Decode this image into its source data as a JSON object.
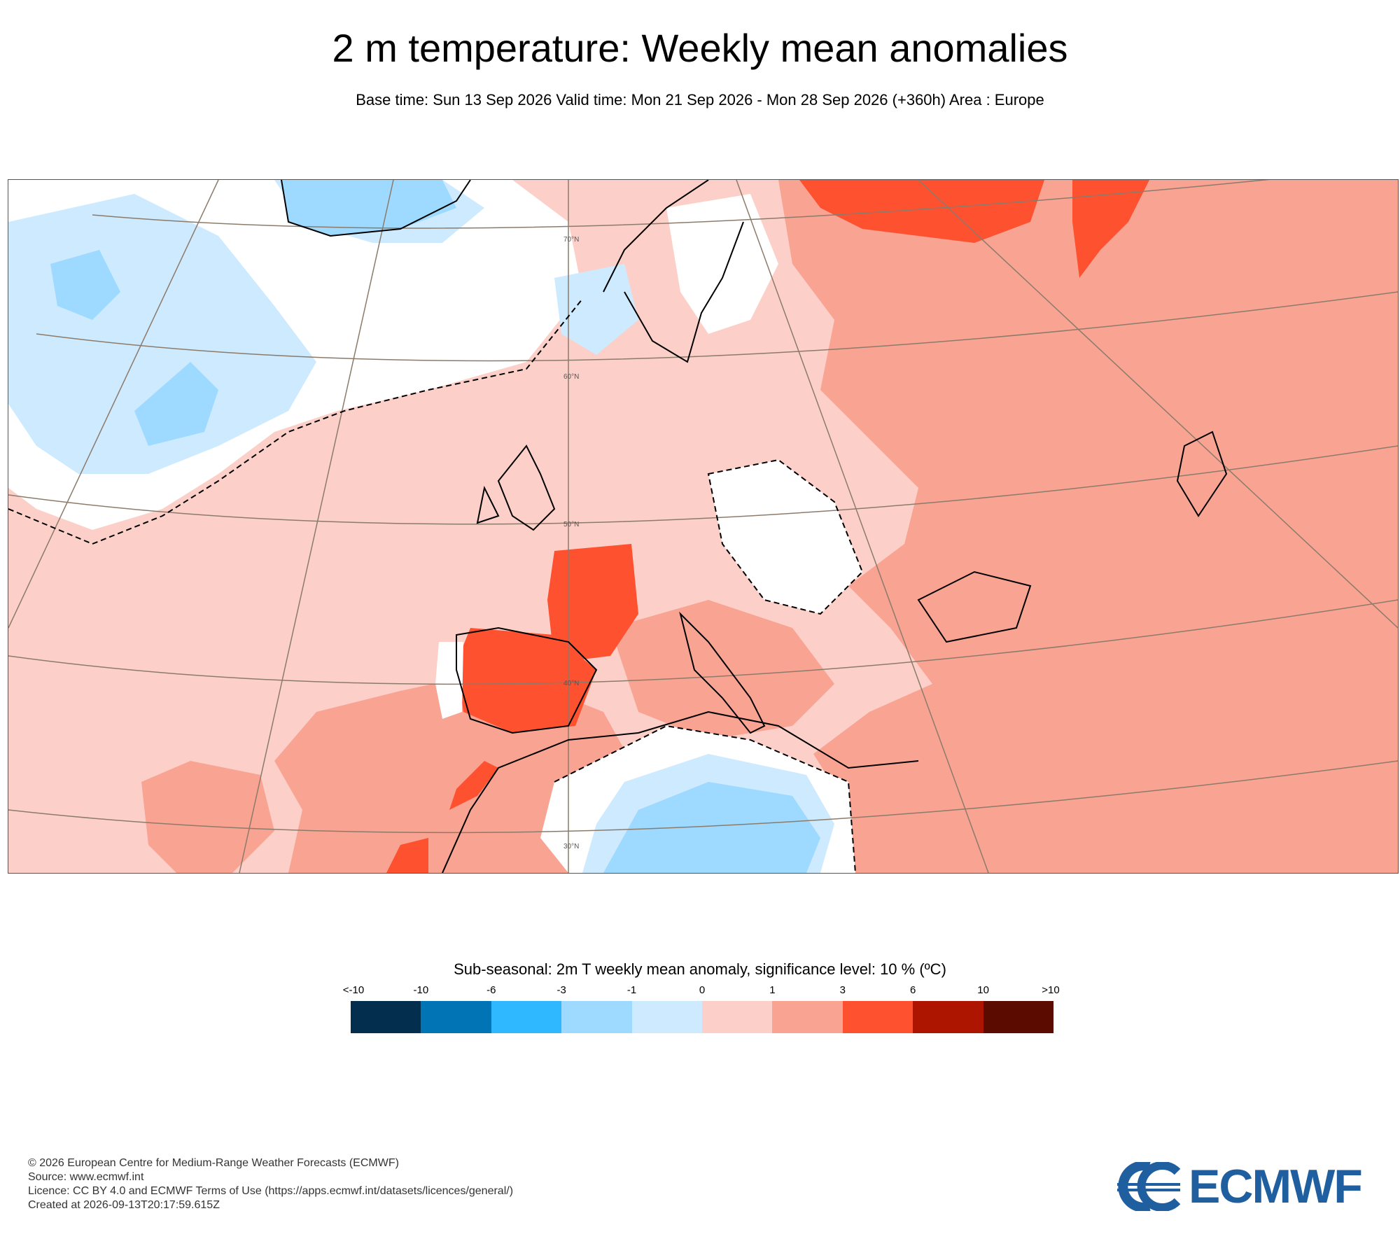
{
  "title": "2 m temperature: Weekly mean anomalies",
  "subtitle": "Base time: Sun 13 Sep 2026 Valid time: Mon 21 Sep 2026 - Mon 28 Sep 2026 (+360h) Area : Europe",
  "map": {
    "latitude_labels": [
      "70°N",
      "60°N",
      "50°N",
      "40°N",
      "30°N"
    ],
    "anomaly_colors": {
      "neg_3_to_neg_1": "#9ed9ff",
      "neg_1_to_0": "#cdeaff",
      "insignificant": "#ffffff",
      "0_to_1": "#fcd0c8",
      "1_to_3": "#f9a393",
      "3_to_6": "#fd5130"
    }
  },
  "legend": {
    "title": "Sub-seasonal: 2m T weekly mean anomaly, significance level: 10 % (ºC)",
    "ticks": [
      "<-10",
      "-10",
      "-6",
      "-3",
      "-1",
      "0",
      "1",
      "3",
      "6",
      "10",
      ">10"
    ],
    "colors": [
      "#032e4d",
      "#0174b5",
      "#2fb7ff",
      "#9ed9ff",
      "#cdeaff",
      "#fcd0c8",
      "#f9a393",
      "#fd5130",
      "#ae1500",
      "#5b0b00"
    ]
  },
  "footer": {
    "line1": "© 2026 European Centre for Medium-Range Weather Forecasts (ECMWF)",
    "line2": "Source: www.ecmwf.int",
    "line3": "Licence: CC BY 4.0 and ECMWF Terms of Use (https://apps.ecmwf.int/datasets/licences/general/)",
    "line4": "Created at 2026-09-13T20:17:59.615Z"
  },
  "logo": {
    "text": "ECMWF",
    "color": "#1f5fa0"
  }
}
